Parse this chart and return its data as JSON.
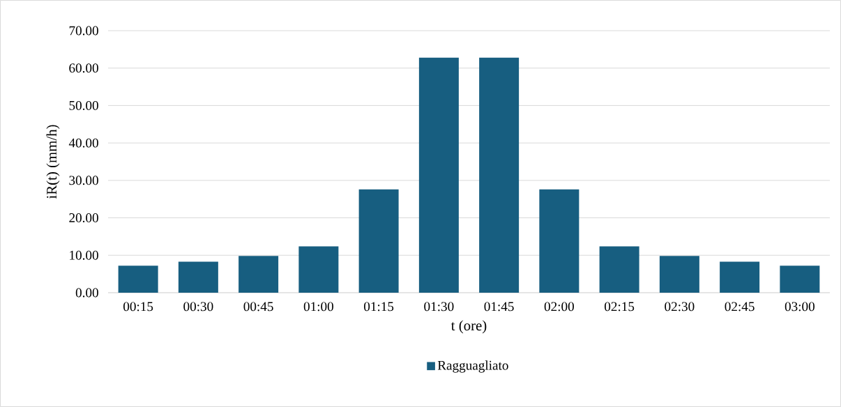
{
  "chart_data": {
    "type": "bar",
    "categories": [
      "00:15",
      "00:30",
      "00:45",
      "01:00",
      "01:15",
      "01:30",
      "01:45",
      "02:00",
      "02:15",
      "02:30",
      "02:45",
      "03:00"
    ],
    "series": [
      {
        "name": "Ragguagliato",
        "color": "#175e80",
        "values": [
          7.2,
          8.3,
          9.8,
          12.4,
          27.6,
          62.8,
          62.8,
          27.6,
          12.4,
          9.8,
          8.3,
          7.2
        ]
      }
    ],
    "xlabel": "t (ore)",
    "ylabel": "iR(t) (mm/h)",
    "ylim": [
      0,
      70
    ],
    "yticks": [
      {
        "value": 0,
        "label": "0.00"
      },
      {
        "value": 10,
        "label": "10.00"
      },
      {
        "value": 20,
        "label": "20.00"
      },
      {
        "value": 30,
        "label": "30.00"
      },
      {
        "value": 40,
        "label": "40.00"
      },
      {
        "value": 50,
        "label": "50.00"
      },
      {
        "value": 60,
        "label": "60.00"
      },
      {
        "value": 70,
        "label": "70.00"
      }
    ],
    "grid": "y",
    "legend": "bottom"
  }
}
